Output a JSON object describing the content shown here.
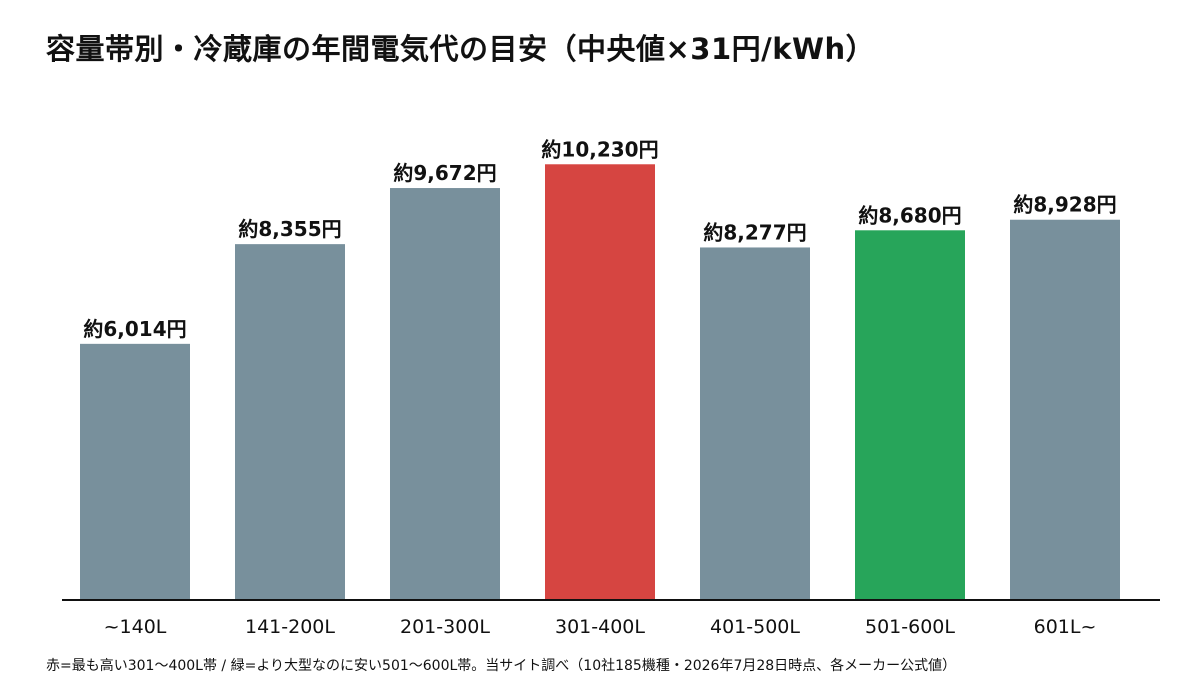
{
  "chart_data": {
    "type": "bar",
    "title": "容量帯別・冷蔵庫の年間電気代の目安（中央値×31円/kWh）",
    "categories": [
      "~140L",
      "141-200L",
      "201-300L",
      "301-400L",
      "401-500L",
      "501-600L",
      "601L~"
    ],
    "values": [
      6014,
      8355,
      9672,
      10230,
      8277,
      8680,
      8928
    ],
    "data_labels": [
      "約6,014円",
      "約8,355円",
      "約9,672円",
      "約10,230円",
      "約8,277円",
      "約8,680円",
      "約8,928円"
    ],
    "bar_colors": [
      "#78909c",
      "#78909c",
      "#78909c",
      "#d64541",
      "#78909c",
      "#27a55a",
      "#78909c"
    ],
    "ylim": [
      0,
      10800
    ],
    "xlabel": "",
    "ylabel": "",
    "grid": false,
    "legend": "none"
  },
  "footnote": "赤=最も高い301〜400L帯 / 緑=より大型なのに安い501〜600L帯。当サイト調べ（10社185機種・2026年7月28日時点、各メーカー公式値）",
  "colors": {
    "default_bar": "#78909c",
    "highlight_high": "#d64541",
    "highlight_value": "#27a55a",
    "axis": "#111111"
  }
}
